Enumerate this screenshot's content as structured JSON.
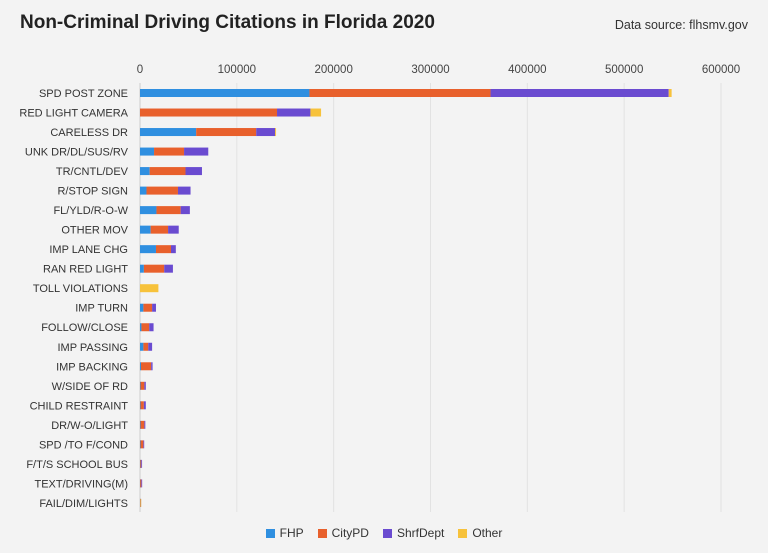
{
  "chart_data": {
    "type": "bar",
    "orientation": "horizontal",
    "stacked": true,
    "title": "Non-Criminal Driving Citations in Florida 2020",
    "source": "Data source: flhsmv.gov",
    "xlim": [
      0,
      600000
    ],
    "xticks": [
      "0",
      "100000",
      "200000",
      "300000",
      "400000",
      "500000",
      "600000"
    ],
    "grid": true,
    "legend_position": "bottom",
    "categories": [
      "SPD POST ZONE",
      "RED LIGHT CAMERA",
      "CARELESS DR",
      "UNK DR/DL/SUS/RV",
      "TR/CNTL/DEV",
      "R/STOP SIGN",
      "FL/YLD/R-O-W",
      "OTHER MOV",
      "IMP LANE CHG",
      "RAN RED LIGHT",
      "TOLL VIOLATIONS",
      "IMP TURN",
      "FOLLOW/CLOSE",
      "IMP PASSING",
      "IMP BACKING",
      "W/SIDE OF RD",
      "CHILD RESTRAINT",
      "DR/W-O/LIGHT",
      "SPD /TO F/COND",
      "F/T/S SCHOOL BUS",
      "TEXT/DRIVING(M)",
      "FAIL/DIM/LIGHTS"
    ],
    "series": [
      {
        "name": "FHP",
        "color": "#2f8fe0",
        "values": [
          175000,
          0,
          58000,
          14500,
          10000,
          6700,
          17000,
          11000,
          16500,
          4000,
          0,
          3500,
          1500,
          3500,
          1000,
          500,
          500,
          500,
          500,
          300,
          200,
          100
        ]
      },
      {
        "name": "CityPD",
        "color": "#e8602c",
        "values": [
          187000,
          141500,
          62000,
          31000,
          37000,
          32500,
          25000,
          18000,
          15500,
          21000,
          0,
          9000,
          8000,
          5000,
          10500,
          4000,
          3500,
          4000,
          3000,
          1000,
          1200,
          200
        ]
      },
      {
        "name": "ShrfDept",
        "color": "#6a4bd0",
        "values": [
          184000,
          34500,
          19500,
          25000,
          17000,
          13000,
          9500,
          11000,
          5000,
          9000,
          0,
          4000,
          4500,
          4000,
          1500,
          1500,
          2000,
          1000,
          500,
          200,
          300,
          100
        ]
      },
      {
        "name": "Other",
        "color": "#f7c23b",
        "values": [
          3000,
          11000,
          1000,
          0,
          0,
          0,
          0,
          0,
          0,
          0,
          19000,
          0,
          0,
          0,
          0,
          0,
          0,
          0,
          0,
          0,
          0,
          500
        ]
      }
    ]
  }
}
